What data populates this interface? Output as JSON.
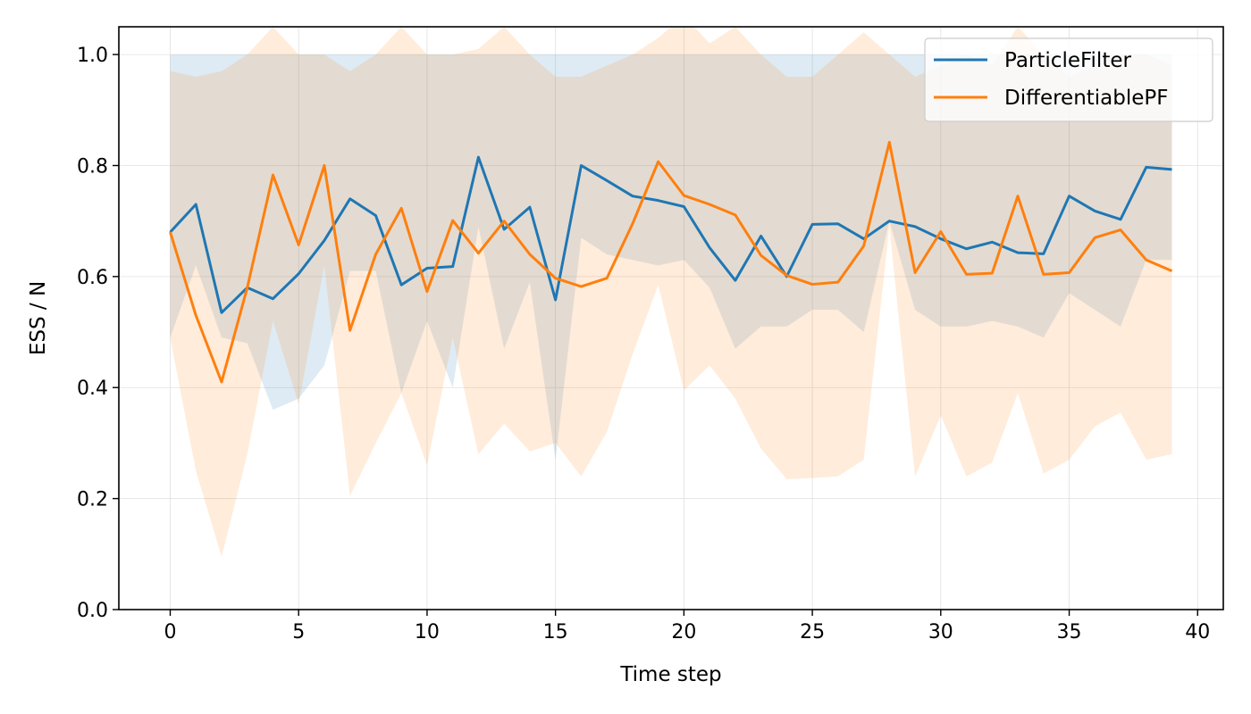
{
  "chart_data": {
    "type": "line",
    "xlabel": "Time step",
    "ylabel": "ESS / N",
    "xlim": [
      -2,
      41
    ],
    "ylim": [
      0.0,
      1.05
    ],
    "xticks": [
      0,
      5,
      10,
      15,
      20,
      25,
      30,
      35,
      40
    ],
    "xtick_labels": [
      "0",
      "5",
      "10",
      "15",
      "20",
      "25",
      "30",
      "35",
      "40"
    ],
    "yticks": [
      0.0,
      0.2,
      0.4,
      0.6,
      0.8,
      1.0
    ],
    "ytick_labels": [
      "0.0",
      "0.2",
      "0.4",
      "0.6",
      "0.8",
      "1.0"
    ],
    "grid": true,
    "legend_position": "top-right",
    "x": [
      0,
      1,
      2,
      3,
      4,
      5,
      6,
      7,
      8,
      9,
      10,
      11,
      12,
      13,
      14,
      15,
      16,
      17,
      18,
      19,
      20,
      21,
      22,
      23,
      24,
      25,
      26,
      27,
      28,
      29,
      30,
      31,
      32,
      33,
      34,
      35,
      36,
      37,
      38,
      39
    ],
    "series": [
      {
        "name": "ParticleFilter",
        "color": "#1f77b4",
        "values": [
          0.68,
          0.73,
          0.535,
          0.58,
          0.56,
          0.605,
          0.665,
          0.74,
          0.71,
          0.585,
          0.615,
          0.618,
          0.815,
          0.685,
          0.725,
          0.558,
          0.8,
          0.773,
          0.745,
          0.737,
          0.726,
          0.652,
          0.593,
          0.673,
          0.6,
          0.694,
          0.695,
          0.668,
          0.7,
          0.69,
          0.668,
          0.65,
          0.662,
          0.643,
          0.641,
          0.745,
          0.718,
          0.703,
          0.797,
          0.793
        ],
        "band_lower": [
          0.49,
          0.62,
          0.49,
          0.48,
          0.36,
          0.38,
          0.44,
          0.61,
          0.61,
          0.39,
          0.52,
          0.4,
          0.69,
          0.47,
          0.59,
          0.27,
          0.67,
          0.64,
          0.63,
          0.62,
          0.63,
          0.58,
          0.47,
          0.51,
          0.51,
          0.54,
          0.54,
          0.5,
          0.7,
          0.54,
          0.51,
          0.51,
          0.52,
          0.51,
          0.49,
          0.57,
          0.54,
          0.51,
          0.63,
          0.63
        ],
        "band_upper": [
          1.0,
          1.0,
          1.0,
          1.0,
          1.0,
          1.0,
          1.0,
          1.0,
          1.0,
          1.0,
          1.0,
          1.0,
          1.0,
          1.0,
          1.0,
          1.0,
          1.0,
          1.0,
          1.0,
          1.0,
          1.0,
          1.0,
          1.0,
          1.0,
          1.0,
          1.0,
          1.0,
          1.0,
          1.0,
          1.0,
          1.0,
          1.0,
          1.0,
          1.0,
          1.0,
          1.0,
          1.0,
          1.0,
          1.0,
          1.0
        ]
      },
      {
        "name": "DifferentiablePF",
        "color": "#ff7f0e",
        "values": [
          0.68,
          0.53,
          0.41,
          0.58,
          0.783,
          0.657,
          0.8,
          0.503,
          0.64,
          0.723,
          0.573,
          0.701,
          0.642,
          0.7,
          0.64,
          0.597,
          0.582,
          0.597,
          0.695,
          0.807,
          0.746,
          0.73,
          0.711,
          0.638,
          0.602,
          0.586,
          0.59,
          0.655,
          0.842,
          0.607,
          0.681,
          0.604,
          0.606,
          0.745,
          0.604,
          0.607,
          0.67,
          0.684,
          0.63,
          0.61
        ],
        "band_lower": [
          0.49,
          0.25,
          0.095,
          0.28,
          0.52,
          0.37,
          0.62,
          0.205,
          0.3,
          0.39,
          0.26,
          0.49,
          0.28,
          0.335,
          0.285,
          0.3,
          0.24,
          0.32,
          0.46,
          0.585,
          0.395,
          0.44,
          0.38,
          0.29,
          0.235,
          0.237,
          0.24,
          0.27,
          0.69,
          0.24,
          0.35,
          0.24,
          0.265,
          0.39,
          0.245,
          0.27,
          0.33,
          0.355,
          0.27,
          0.28
        ],
        "band_upper": [
          0.97,
          0.96,
          0.97,
          1.0,
          1.05,
          1.0,
          1.0,
          0.97,
          1.0,
          1.05,
          1.0,
          1.0,
          1.01,
          1.05,
          1.0,
          0.96,
          0.96,
          0.98,
          1.0,
          1.03,
          1.07,
          1.02,
          1.05,
          1.0,
          0.96,
          0.96,
          1.0,
          1.04,
          1.0,
          0.96,
          0.98,
          1.0,
          0.98,
          1.05,
          1.0,
          0.96,
          0.98,
          1.0,
          1.0,
          0.98
        ]
      }
    ]
  }
}
